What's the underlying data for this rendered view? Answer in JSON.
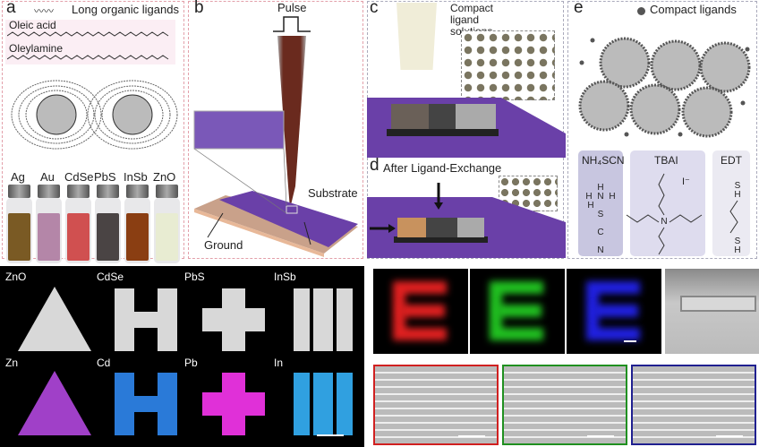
{
  "panel_a": {
    "label": "a",
    "legend": "Long organic ligands",
    "ligand1": "Oleic acid",
    "ligand2": "Oleylamine",
    "vials": [
      {
        "name": "Ag",
        "color": "#7a5a24"
      },
      {
        "name": "Au",
        "color": "#b486a8"
      },
      {
        "name": "CdSe",
        "color": "#d05050"
      },
      {
        "name": "PbS",
        "color": "#4a4444"
      },
      {
        "name": "InSb",
        "color": "#8a3e12"
      },
      {
        "name": "ZnO",
        "color": "#e8ecd2"
      }
    ]
  },
  "panel_b": {
    "label": "b",
    "pulse": "Pulse",
    "substrate": "Substrate",
    "ground": "Ground"
  },
  "panel_c": {
    "label": "c",
    "solutions": "Compact ligand solutions"
  },
  "panel_d": {
    "label": "d",
    "title": "After Ligand-Exchange"
  },
  "panel_e": {
    "label": "e",
    "legend": "Compact ligands",
    "chemicals": [
      "NH₄SCN",
      "TBAI",
      "EDT"
    ],
    "iodide": "I⁻"
  },
  "bottom_left": {
    "materials": [
      "ZnO",
      "CdSe",
      "PbS",
      "InSb"
    ],
    "elements": [
      "Zn",
      "Cd",
      "Pb",
      "In"
    ],
    "map_colors": [
      "#a040c8",
      "#2a7ad8",
      "#e030d8",
      "#30a0e0"
    ]
  },
  "bottom_right": {
    "channel_colors": [
      "#e02020",
      "#20c020",
      "#2020e0"
    ],
    "frame_colors": [
      "#d02020",
      "#209020",
      "#202090"
    ]
  },
  "colors": {
    "substrate": "#6a40a8",
    "panel_border": "#e3a0aa"
  }
}
